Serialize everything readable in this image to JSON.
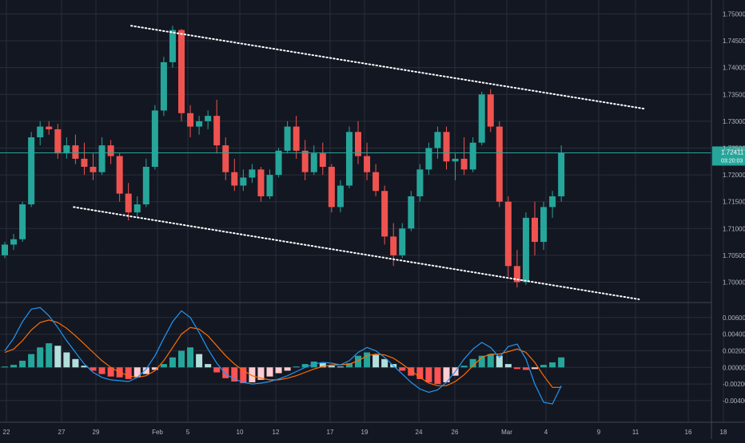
{
  "chart_data": [
    {
      "type": "candlestick",
      "title": "",
      "current_price": "1.72411",
      "countdown": "03:20:03",
      "y_ticks": [
        "1.75000",
        "1.74500",
        "1.74000",
        "1.73500",
        "1.73000",
        "1.72500",
        "1.72000",
        "1.71500",
        "1.71000",
        "1.70500",
        "1.70000"
      ],
      "ylim": [
        1.6962,
        1.7526
      ],
      "x_ticks": [
        "22",
        "27",
        "29",
        "Feb",
        "5",
        "10",
        "12",
        "17",
        "19",
        "24",
        "26",
        "Mar",
        "4",
        "9",
        "11",
        "16",
        "18"
      ],
      "trendlines": [
        {
          "name": "upper-channel",
          "from": [
            14.3,
            1.7478
          ],
          "to": [
            72.5,
            1.7323
          ]
        },
        {
          "name": "lower-channel",
          "from": [
            7.8,
            1.714
          ],
          "to": [
            71.8,
            1.6968
          ]
        }
      ],
      "candles": [
        [
          1.705,
          1.7075,
          1.7045,
          1.707
        ],
        [
          1.707,
          1.709,
          1.706,
          1.708
        ],
        [
          1.708,
          1.715,
          1.7075,
          1.7145
        ],
        [
          1.7145,
          1.728,
          1.714,
          1.727
        ],
        [
          1.727,
          1.73,
          1.7255,
          1.729
        ],
        [
          1.729,
          1.73,
          1.7275,
          1.7285
        ],
        [
          1.7285,
          1.7295,
          1.723,
          1.724
        ],
        [
          1.724,
          1.727,
          1.723,
          1.7255
        ],
        [
          1.7255,
          1.7275,
          1.722,
          1.723
        ],
        [
          1.723,
          1.726,
          1.72,
          1.7215
        ],
        [
          1.7215,
          1.724,
          1.719,
          1.7205
        ],
        [
          1.7205,
          1.727,
          1.72,
          1.7255
        ],
        [
          1.7255,
          1.7265,
          1.722,
          1.7235
        ],
        [
          1.7235,
          1.724,
          1.715,
          1.7165
        ],
        [
          1.7165,
          1.7185,
          1.7115,
          1.713
        ],
        [
          1.713,
          1.716,
          1.712,
          1.7145
        ],
        [
          1.7145,
          1.723,
          1.714,
          1.7215
        ],
        [
          1.7215,
          1.733,
          1.721,
          1.732
        ],
        [
          1.732,
          1.742,
          1.731,
          1.741
        ],
        [
          1.741,
          1.7478,
          1.74,
          1.747
        ],
        [
          1.747,
          1.7472,
          1.73,
          1.7315
        ],
        [
          1.7315,
          1.733,
          1.727,
          1.729
        ],
        [
          1.729,
          1.731,
          1.7275,
          1.73
        ],
        [
          1.73,
          1.732,
          1.7285,
          1.731
        ],
        [
          1.731,
          1.734,
          1.724,
          1.7255
        ],
        [
          1.7255,
          1.727,
          1.719,
          1.7205
        ],
        [
          1.7205,
          1.723,
          1.717,
          1.718
        ],
        [
          1.718,
          1.721,
          1.717,
          1.7195
        ],
        [
          1.7195,
          1.722,
          1.7185,
          1.721
        ],
        [
          1.721,
          1.7215,
          1.715,
          1.716
        ],
        [
          1.716,
          1.721,
          1.7155,
          1.72
        ],
        [
          1.72,
          1.725,
          1.7195,
          1.7245
        ],
        [
          1.7245,
          1.73,
          1.724,
          1.729
        ],
        [
          1.729,
          1.731,
          1.723,
          1.7245
        ],
        [
          1.7245,
          1.7265,
          1.719,
          1.7205
        ],
        [
          1.7205,
          1.7255,
          1.72,
          1.724
        ],
        [
          1.724,
          1.726,
          1.72,
          1.7215
        ],
        [
          1.7215,
          1.722,
          1.713,
          1.714
        ],
        [
          1.714,
          1.719,
          1.713,
          1.718
        ],
        [
          1.718,
          1.729,
          1.7175,
          1.728
        ],
        [
          1.728,
          1.73,
          1.722,
          1.7235
        ],
        [
          1.7235,
          1.726,
          1.719,
          1.7205
        ],
        [
          1.7205,
          1.722,
          1.716,
          1.717
        ],
        [
          1.717,
          1.718,
          1.707,
          1.7085
        ],
        [
          1.7085,
          1.711,
          1.703,
          1.705
        ],
        [
          1.705,
          1.711,
          1.7045,
          1.71
        ],
        [
          1.71,
          1.717,
          1.7095,
          1.716
        ],
        [
          1.716,
          1.722,
          1.715,
          1.721
        ],
        [
          1.721,
          1.726,
          1.72,
          1.725
        ],
        [
          1.725,
          1.729,
          1.723,
          1.728
        ],
        [
          1.728,
          1.729,
          1.721,
          1.7225
        ],
        [
          1.7225,
          1.724,
          1.719,
          1.723
        ],
        [
          1.723,
          1.727,
          1.72,
          1.721
        ],
        [
          1.721,
          1.727,
          1.7205,
          1.726
        ],
        [
          1.726,
          1.7355,
          1.7255,
          1.735
        ],
        [
          1.735,
          1.736,
          1.728,
          1.729
        ],
        [
          1.729,
          1.73,
          1.714,
          1.715
        ],
        [
          1.715,
          1.716,
          1.701,
          1.703
        ],
        [
          1.703,
          1.706,
          1.699,
          1.7
        ],
        [
          1.7,
          1.713,
          1.6995,
          1.712
        ],
        [
          1.712,
          1.715,
          1.705,
          1.7075
        ],
        [
          1.7075,
          1.715,
          1.706,
          1.714
        ],
        [
          1.714,
          1.717,
          1.712,
          1.716
        ],
        [
          1.716,
          1.7255,
          1.715,
          1.7241
        ]
      ]
    },
    {
      "type": "macd",
      "y_ticks": [
        "0.00600",
        "0.00400",
        "0.00200",
        "0.00000",
        "-0.00200",
        "-0.00400"
      ],
      "ylim": [
        -0.0066,
        0.0078
      ],
      "histogram": [
        0.0001,
        0.0003,
        0.0008,
        0.0016,
        0.0024,
        0.0029,
        0.0026,
        0.0018,
        0.001,
        0.0002,
        -0.0004,
        -0.0008,
        -0.0011,
        -0.0012,
        -0.0014,
        -0.0012,
        -0.0008,
        -0.0003,
        0.0004,
        0.0012,
        0.002,
        0.0024,
        0.0016,
        0.0004,
        -0.0006,
        -0.0013,
        -0.0017,
        -0.0019,
        -0.0018,
        -0.0015,
        -0.0011,
        -0.0007,
        -0.0004,
        0.0001,
        0.0004,
        0.0007,
        0.0005,
        0.0002,
        0.0001,
        0.0005,
        0.0014,
        0.0018,
        0.0015,
        0.001,
        0.0004,
        -0.0004,
        -0.001,
        -0.0014,
        -0.0018,
        -0.002,
        -0.0018,
        -0.001,
        0.0002,
        0.001,
        0.0014,
        0.0016,
        0.0014,
        0.0004,
        -0.0002,
        -0.0003,
        -0.0002,
        0.0003,
        0.0006,
        0.0012
      ],
      "macd": [
        0.002,
        0.0035,
        0.0055,
        0.007,
        0.0072,
        0.0062,
        0.0048,
        0.0032,
        0.0018,
        0.0004,
        -0.0006,
        -0.0012,
        -0.0015,
        -0.0016,
        -0.0017,
        -0.0012,
        -0.0002,
        0.0014,
        0.0035,
        0.0055,
        0.0068,
        0.006,
        0.0042,
        0.0022,
        0.0005,
        -0.0008,
        -0.0014,
        -0.0018,
        -0.002,
        -0.0019,
        -0.0017,
        -0.0014,
        -0.001,
        -0.0005,
        0.0,
        0.0004,
        0.0006,
        0.0005,
        0.0003,
        0.0008,
        0.0018,
        0.0024,
        0.002,
        0.0012,
        0.0002,
        -0.0008,
        -0.0018,
        -0.0026,
        -0.003,
        -0.0027,
        -0.0018,
        -0.0005,
        0.001,
        0.0022,
        0.003,
        0.0024,
        0.0012,
        0.0025,
        0.0028,
        0.001,
        -0.002,
        -0.0042,
        -0.0044,
        -0.0022
      ],
      "signal": [
        0.0018,
        0.0022,
        0.0032,
        0.0045,
        0.0054,
        0.0057,
        0.0054,
        0.0047,
        0.0038,
        0.0028,
        0.0018,
        0.0008,
        0.0,
        -0.0006,
        -0.001,
        -0.0012,
        -0.001,
        -0.0004,
        0.0008,
        0.0024,
        0.004,
        0.0048,
        0.0046,
        0.0038,
        0.0026,
        0.0014,
        0.0004,
        -0.0004,
        -0.001,
        -0.0013,
        -0.0015,
        -0.0015,
        -0.0013,
        -0.001,
        -0.0006,
        -0.0002,
        0.0001,
        0.0003,
        0.0003,
        0.0004,
        0.0008,
        0.0014,
        0.0016,
        0.0015,
        0.0011,
        0.0004,
        -0.0004,
        -0.0012,
        -0.0019,
        -0.0022,
        -0.0022,
        -0.0017,
        -0.0009,
        0.0002,
        0.0012,
        0.0016,
        0.0016,
        0.0019,
        0.0022,
        0.0018,
        0.0006,
        -0.001,
        -0.0024,
        -0.0024
      ]
    }
  ],
  "colors": {
    "background": "#131722",
    "grid": "#2a2e39",
    "axis_text": "#b2b5be",
    "bull": "#26a69a",
    "bear": "#ef5350",
    "price_line": "#26a69a",
    "macd_line": "#2196f3",
    "signal_line": "#ff6d00",
    "hist_up_strong": "#26a69a",
    "hist_up_weak": "#b2dfdb",
    "hist_down_strong": "#ff5252",
    "hist_down_weak": "#ffcdd2",
    "trendline": "#ffffff"
  }
}
